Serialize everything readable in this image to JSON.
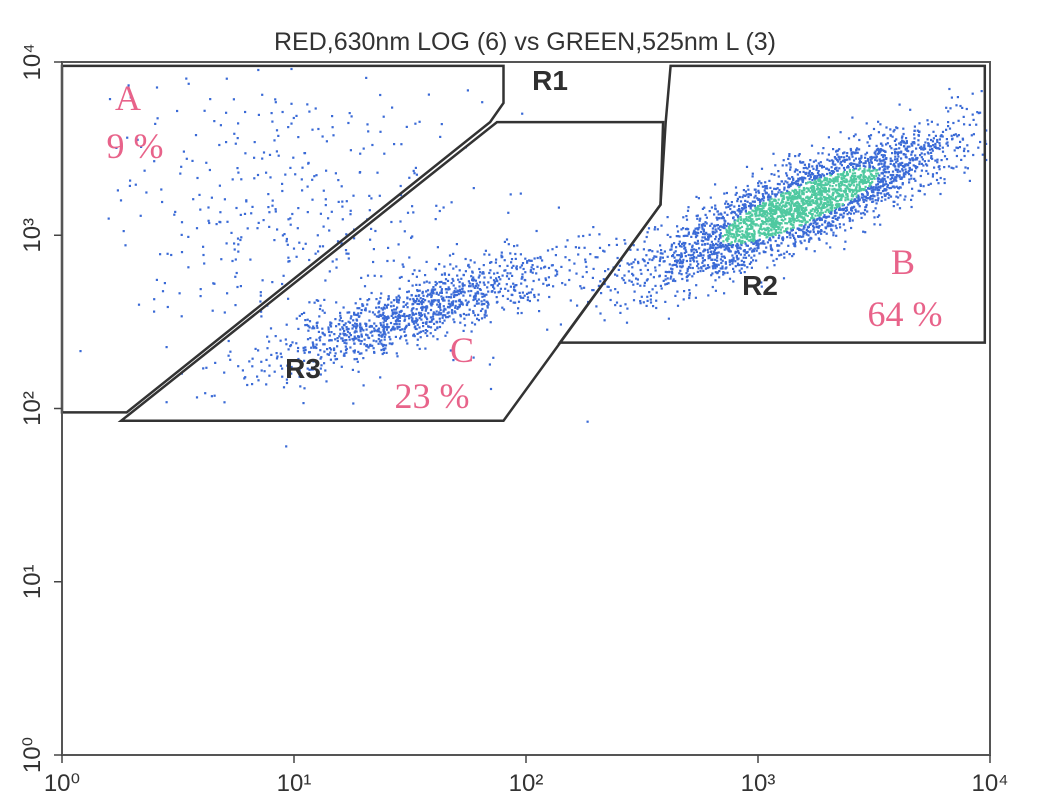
{
  "chart_data": {
    "type": "scatter",
    "title": "RED,630nm  LOG (6) vs GREEN,525nm   L (3)",
    "xscale": "log",
    "yscale": "log",
    "xlim": [
      1,
      10000
    ],
    "ylim": [
      1,
      10000
    ],
    "x_ticks": [
      {
        "value": 1,
        "label": "10⁰"
      },
      {
        "value": 10,
        "label": "10¹"
      },
      {
        "value": 100,
        "label": "10²"
      },
      {
        "value": 1000,
        "label": "10³"
      },
      {
        "value": 10000,
        "label": "10⁴"
      }
    ],
    "y_ticks": [
      {
        "value": 1,
        "label": "10⁰"
      },
      {
        "value": 10,
        "label": "10¹"
      },
      {
        "value": 100,
        "label": "10²"
      },
      {
        "value": 1000,
        "label": "10³"
      },
      {
        "value": 10000,
        "label": "10⁴"
      }
    ],
    "grid": false,
    "point_color": "#3a6ad6",
    "dense_color": "#4fc9a0",
    "regions": [
      {
        "name": "R1",
        "polygon": [
          [
            1,
            9500
          ],
          [
            1,
            95
          ],
          [
            1.9,
            95
          ],
          [
            70,
            4500
          ],
          [
            80,
            5800
          ],
          [
            80,
            9500
          ]
        ]
      },
      {
        "name": "R2",
        "polygon": [
          [
            420,
            9500
          ],
          [
            400,
            4500
          ],
          [
            380,
            1500
          ],
          [
            140,
            240
          ],
          [
            9500,
            240
          ],
          [
            9500,
            9500
          ]
        ]
      },
      {
        "name": "R3",
        "polygon": [
          [
            1.8,
            85
          ],
          [
            75,
            4500
          ],
          [
            390,
            4500
          ],
          [
            380,
            1500
          ],
          [
            80,
            85
          ]
        ]
      }
    ],
    "populations": [
      {
        "label": "A",
        "percent": "9 %",
        "color": "#e8638a"
      },
      {
        "label": "B",
        "percent": "64 %",
        "color": "#e8638a"
      },
      {
        "label": "C",
        "percent": "23 %",
        "color": "#e8638a"
      }
    ],
    "clusters": [
      {
        "population": "B",
        "center": [
          1500,
          1500
        ],
        "spread": [
          0.34,
          0.22
        ],
        "correlation": 0.85,
        "count": 3200
      },
      {
        "population": "C",
        "center": [
          35,
          380
        ],
        "spread": [
          0.33,
          0.17
        ],
        "correlation": 0.86,
        "count": 1150
      },
      {
        "population": "A",
        "center": [
          10,
          1300
        ],
        "spread": [
          0.4,
          0.45
        ],
        "correlation": 0.0,
        "count": 420
      }
    ]
  }
}
